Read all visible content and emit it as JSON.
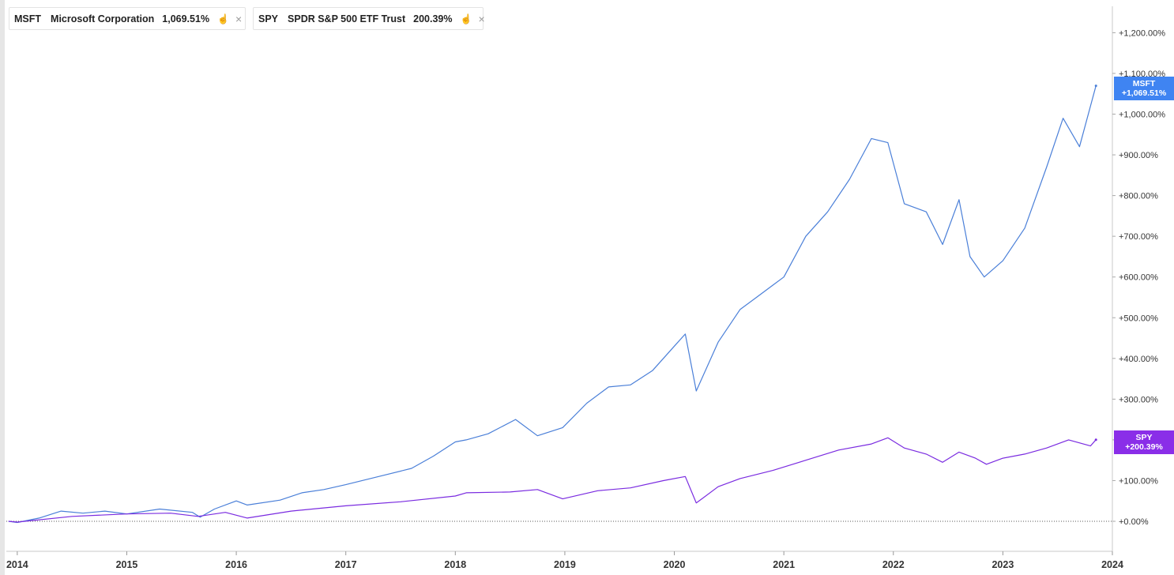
{
  "colors": {
    "msft": "#4a7fd8",
    "spy": "#7a2be0",
    "msft_tag": "#3f84f2",
    "spy_tag": "#8a2ee8"
  },
  "legend": [
    {
      "symbol": "MSFT",
      "name": "Microsoft Corporation",
      "value": "1,069.51%",
      "icon": "hand-point-icon",
      "close": "×"
    },
    {
      "symbol": "SPY",
      "name": "SPDR S&P 500 ETF Trust",
      "value": "200.39%",
      "icon": "hand-point-icon",
      "close": "×"
    }
  ],
  "tags": {
    "msft": {
      "symbol": "MSFT",
      "value": "+1,069.51%"
    },
    "spy": {
      "symbol": "SPY",
      "value": "+200.39%"
    }
  },
  "chart_data": {
    "type": "line",
    "title": "",
    "xlabel": "",
    "ylabel": "",
    "x_ticks": [
      "2014",
      "2015",
      "2016",
      "2017",
      "2018",
      "2019",
      "2020",
      "2021",
      "2022",
      "2023",
      "2024"
    ],
    "y_ticks": [
      "+0.00%",
      "+100.00%",
      "+200.00%",
      "+300.00%",
      "+400.00%",
      "+500.00%",
      "+600.00%",
      "+700.00%",
      "+800.00%",
      "+900.00%",
      "+1,000.00%",
      "+1,100.00%",
      "+1,200.00%"
    ],
    "xlim": [
      2013.9,
      2024.0
    ],
    "ylim": [
      -70,
      1270
    ],
    "grid": false,
    "baseline": 0,
    "legend_position": "top-left",
    "series": [
      {
        "name": "MSFT",
        "x": [
          2013.92,
          2014.0,
          2014.2,
          2014.4,
          2014.6,
          2014.8,
          2015.0,
          2015.3,
          2015.6,
          2015.67,
          2015.8,
          2016.0,
          2016.1,
          2016.4,
          2016.6,
          2016.8,
          2017.0,
          2017.3,
          2017.6,
          2017.8,
          2018.0,
          2018.1,
          2018.3,
          2018.55,
          2018.75,
          2018.98,
          2019.2,
          2019.4,
          2019.6,
          2019.8,
          2020.0,
          2020.1,
          2020.2,
          2020.4,
          2020.6,
          2020.75,
          2020.9,
          2021.0,
          2021.2,
          2021.4,
          2021.6,
          2021.8,
          2021.95,
          2022.1,
          2022.3,
          2022.45,
          2022.6,
          2022.7,
          2022.83,
          2023.0,
          2023.2,
          2023.4,
          2023.55,
          2023.7,
          2023.85
        ],
        "values": [
          0,
          -3,
          8,
          25,
          20,
          25,
          18,
          30,
          22,
          10,
          30,
          50,
          40,
          52,
          70,
          78,
          90,
          110,
          130,
          160,
          195,
          200,
          215,
          250,
          210,
          230,
          290,
          330,
          335,
          370,
          430,
          460,
          320,
          440,
          520,
          550,
          580,
          600,
          700,
          760,
          840,
          940,
          930,
          780,
          760,
          680,
          790,
          650,
          600,
          640,
          720,
          870,
          990,
          920,
          1069.51
        ]
      },
      {
        "name": "SPY",
        "x": [
          2013.92,
          2014.0,
          2014.5,
          2015.0,
          2015.4,
          2015.65,
          2015.9,
          2016.1,
          2016.5,
          2017.0,
          2017.5,
          2018.0,
          2018.1,
          2018.5,
          2018.75,
          2018.98,
          2019.3,
          2019.6,
          2019.9,
          2020.1,
          2020.2,
          2020.4,
          2020.6,
          2020.9,
          2021.2,
          2021.5,
          2021.8,
          2021.95,
          2022.1,
          2022.3,
          2022.45,
          2022.6,
          2022.75,
          2022.85,
          2023.0,
          2023.2,
          2023.4,
          2023.6,
          2023.8,
          2023.85
        ],
        "values": [
          0,
          -2,
          12,
          18,
          20,
          12,
          22,
          8,
          25,
          38,
          48,
          62,
          70,
          72,
          78,
          55,
          75,
          82,
          100,
          110,
          45,
          85,
          105,
          125,
          150,
          175,
          190,
          205,
          180,
          165,
          145,
          170,
          155,
          140,
          155,
          165,
          180,
          200,
          185,
          200.39
        ]
      }
    ]
  }
}
